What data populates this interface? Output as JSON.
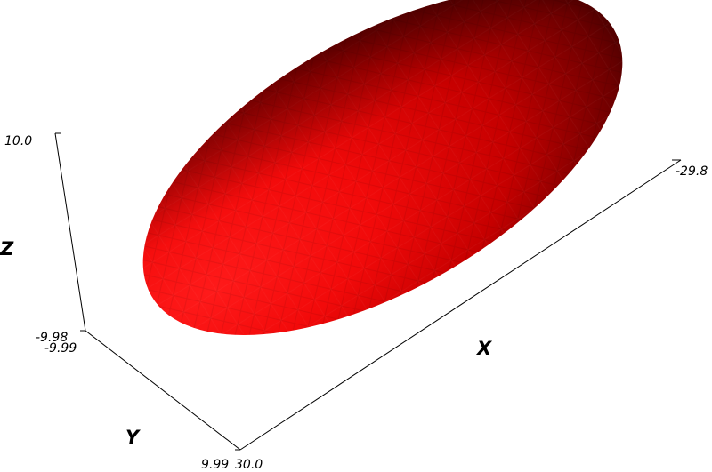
{
  "scene": {
    "object": "ellipsoid",
    "surface_color": "#ff0000",
    "shadow_color": "#2a0000",
    "background": "#ffffff"
  },
  "axes": {
    "x": {
      "title": "X",
      "tick_min": "30.0",
      "tick_max": "-29.8"
    },
    "y": {
      "title": "Y",
      "tick_min": "-9.99",
      "tick_max": "9.99"
    },
    "z": {
      "title": "Z",
      "tick_min": "-9.98",
      "tick_max": "10.0"
    }
  }
}
